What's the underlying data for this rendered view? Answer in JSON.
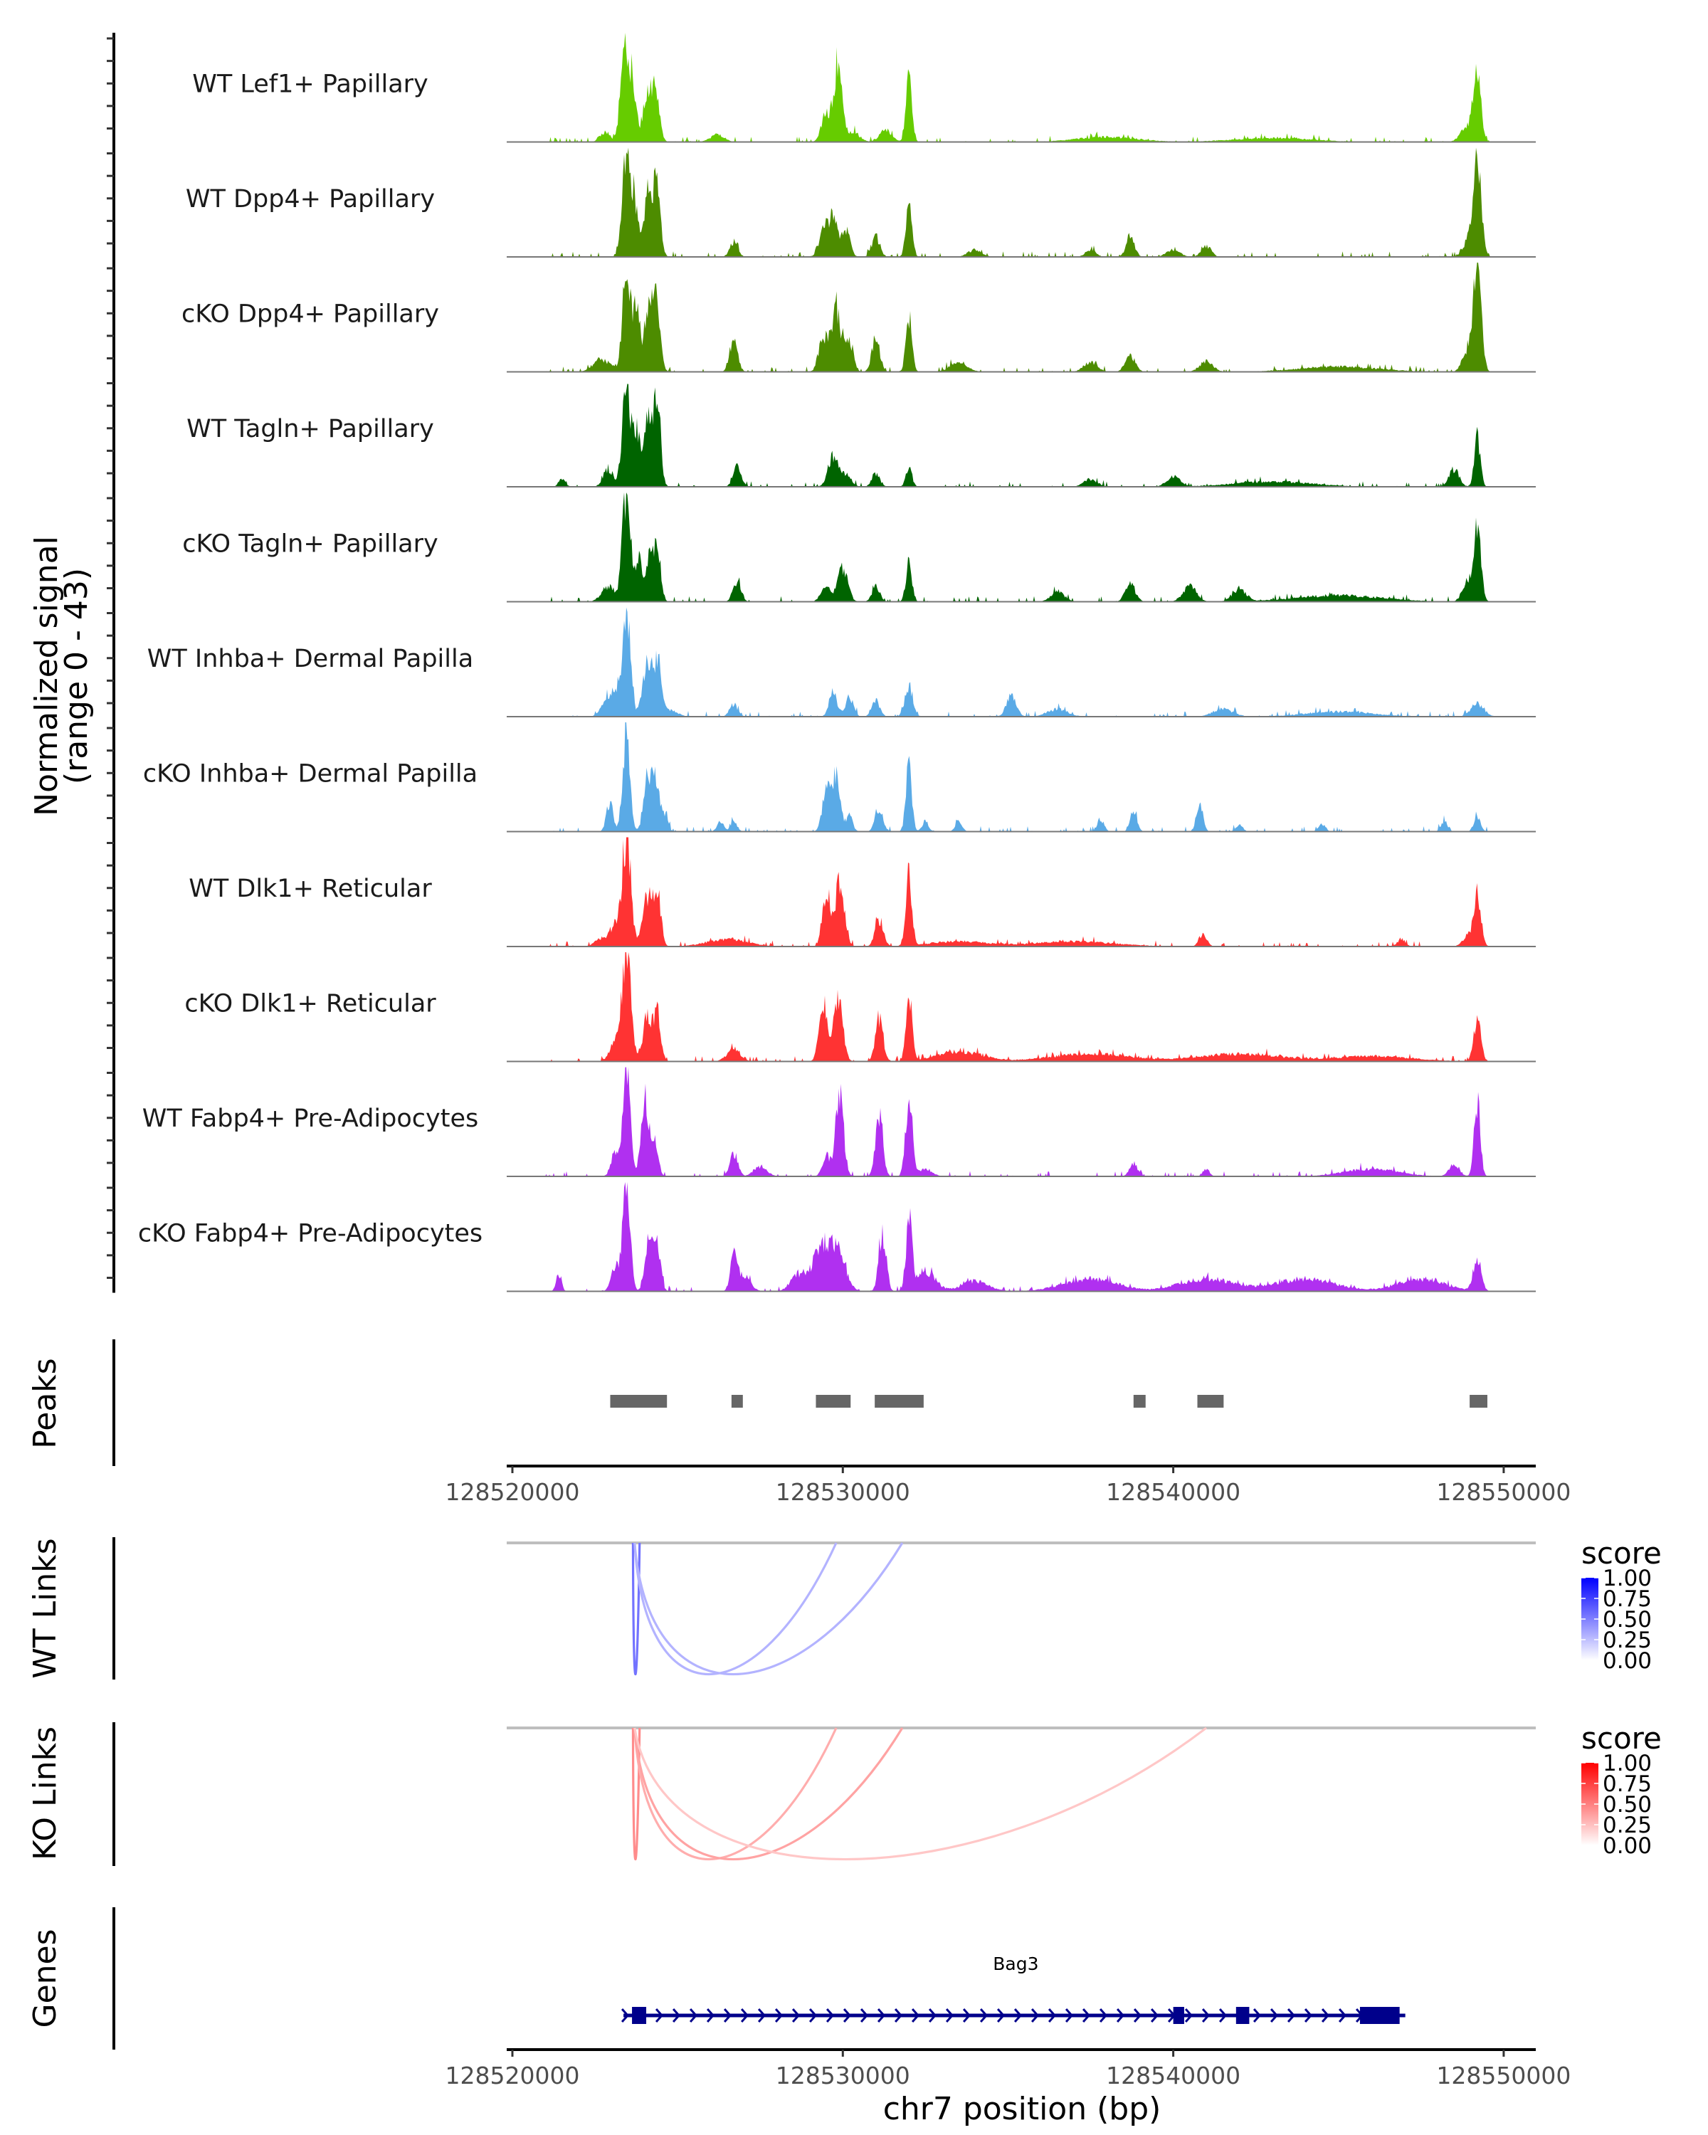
{
  "chart_data": {
    "type": "area",
    "title": "",
    "region": "chr7:128519828-128550971",
    "xlabel": "chr7 position (bp)",
    "ylabel": "Normalized signal\n(range 0 - 43)",
    "ylabel_lines": [
      "Normalized signal",
      "(range 0 - 43)"
    ],
    "ylim": [
      0,
      43
    ],
    "xlim": [
      128519828,
      128550971
    ],
    "x_ticks": [
      128520000,
      128530000,
      128540000,
      128550000
    ],
    "x_tick_labels": [
      "128520000",
      "128530000",
      "128540000",
      "128550000"
    ],
    "grid": false,
    "coverage_tracks": [
      {
        "name": "WT Lef1+ Papillary",
        "color": "#66cc00",
        "peaks": [
          [
            128523400,
            43,
            120
          ],
          [
            128523650,
            22,
            90
          ],
          [
            128524100,
            20,
            140
          ],
          [
            128524350,
            17,
            110
          ],
          [
            128522800,
            4,
            150
          ],
          [
            128526200,
            3,
            200
          ],
          [
            128529500,
            11,
            140
          ],
          [
            128529850,
            30,
            120
          ],
          [
            128530300,
            4,
            200
          ],
          [
            128531300,
            5,
            180
          ],
          [
            128532000,
            25,
            90
          ],
          [
            128549200,
            27,
            110
          ],
          [
            128548900,
            6,
            200
          ],
          [
            128538000,
            2,
            900
          ],
          [
            128543000,
            1.5,
            1200
          ]
        ]
      },
      {
        "name": "WT Dpp4+ Papillary",
        "color": "#4d8c00",
        "peaks": [
          [
            128523450,
            43,
            120
          ],
          [
            128523700,
            20,
            100
          ],
          [
            128524150,
            26,
            150
          ],
          [
            128524400,
            22,
            100
          ],
          [
            128526700,
            6,
            120
          ],
          [
            128529400,
            9,
            130
          ],
          [
            128529700,
            15,
            150
          ],
          [
            128530100,
            11,
            120
          ],
          [
            128531000,
            8,
            120
          ],
          [
            128532000,
            22,
            90
          ],
          [
            128534000,
            3,
            200
          ],
          [
            128537500,
            3,
            150
          ],
          [
            128538700,
            9,
            120
          ],
          [
            128540000,
            3,
            200
          ],
          [
            128541000,
            4,
            150
          ],
          [
            128549200,
            40,
            120
          ],
          [
            128548900,
            6,
            150
          ]
        ]
      },
      {
        "name": "cKO Dpp4+ Papillary",
        "color": "#4d8c00",
        "peaks": [
          [
            128523450,
            40,
            120
          ],
          [
            128523750,
            22,
            100
          ],
          [
            128524150,
            28,
            150
          ],
          [
            128524400,
            20,
            100
          ],
          [
            128522700,
            5,
            250
          ],
          [
            128526700,
            12,
            120
          ],
          [
            128529400,
            14,
            130
          ],
          [
            128529800,
            24,
            150
          ],
          [
            128530200,
            12,
            120
          ],
          [
            128531000,
            13,
            120
          ],
          [
            128532000,
            22,
            90
          ],
          [
            128533500,
            4,
            250
          ],
          [
            128537500,
            4,
            200
          ],
          [
            128538700,
            6,
            150
          ],
          [
            128541000,
            4,
            200
          ],
          [
            128549200,
            41,
            120
          ],
          [
            128548900,
            8,
            150
          ],
          [
            128545000,
            2,
            1200
          ]
        ]
      },
      {
        "name": "WT Tagln+ Papillary",
        "color": "#006400",
        "peaks": [
          [
            128523450,
            43,
            120
          ],
          [
            128523750,
            20,
            100
          ],
          [
            128524150,
            30,
            150
          ],
          [
            128524400,
            25,
            100
          ],
          [
            128521500,
            3,
            100
          ],
          [
            128522900,
            7,
            150
          ],
          [
            128526800,
            8,
            120
          ],
          [
            128529700,
            12,
            150
          ],
          [
            128530100,
            5,
            150
          ],
          [
            128531000,
            5,
            120
          ],
          [
            128532000,
            8,
            90
          ],
          [
            128537500,
            3,
            200
          ],
          [
            128540000,
            4,
            200
          ],
          [
            128548500,
            7,
            150
          ],
          [
            128549200,
            20,
            90
          ],
          [
            128543000,
            2,
            1200
          ]
        ]
      },
      {
        "name": "cKO Tagln+ Papillary",
        "color": "#006400",
        "peaks": [
          [
            128523450,
            43,
            120
          ],
          [
            128523800,
            16,
            100
          ],
          [
            128524150,
            17,
            150
          ],
          [
            128524400,
            18,
            100
          ],
          [
            128522900,
            6,
            200
          ],
          [
            128526800,
            8,
            120
          ],
          [
            128529500,
            6,
            150
          ],
          [
            128530000,
            13,
            150
          ],
          [
            128531000,
            6,
            120
          ],
          [
            128532000,
            16,
            90
          ],
          [
            128536500,
            4,
            200
          ],
          [
            128538700,
            7,
            150
          ],
          [
            128540500,
            6,
            200
          ],
          [
            128542000,
            5,
            200
          ],
          [
            128549200,
            28,
            110
          ],
          [
            128548900,
            8,
            150
          ],
          [
            128545000,
            2.5,
            1300
          ]
        ]
      },
      {
        "name": "WT Inhba+ Dermal Papilla",
        "color": "#5aaae6",
        "peaks": [
          [
            128523450,
            43,
            120
          ],
          [
            128523100,
            10,
            150
          ],
          [
            128522800,
            6,
            150
          ],
          [
            128524100,
            21,
            150
          ],
          [
            128524400,
            18,
            100
          ],
          [
            128524700,
            3,
            250
          ],
          [
            128526700,
            5,
            120
          ],
          [
            128529700,
            9,
            120
          ],
          [
            128530200,
            8,
            120
          ],
          [
            128531000,
            6,
            120
          ],
          [
            128532000,
            12,
            120
          ],
          [
            128535100,
            8,
            150
          ],
          [
            128536500,
            3,
            300
          ],
          [
            128541500,
            3,
            300
          ],
          [
            128545000,
            2,
            1000
          ],
          [
            128549200,
            5,
            200
          ]
        ]
      },
      {
        "name": "cKO Inhba+ Dermal Papilla",
        "color": "#5aaae6",
        "peaks": [
          [
            128523450,
            40,
            110
          ],
          [
            128522950,
            12,
            100
          ],
          [
            128524100,
            23,
            120
          ],
          [
            128524350,
            17,
            100
          ],
          [
            128524600,
            7,
            100
          ],
          [
            128526300,
            4,
            100
          ],
          [
            128526700,
            4,
            100
          ],
          [
            128529500,
            17,
            120
          ],
          [
            128529800,
            21,
            120
          ],
          [
            128530200,
            6,
            100
          ],
          [
            128531100,
            9,
            120
          ],
          [
            128532000,
            26,
            90
          ],
          [
            128532500,
            4,
            100
          ],
          [
            128533500,
            4,
            100
          ],
          [
            128537800,
            5,
            100
          ],
          [
            128538800,
            8,
            100
          ],
          [
            128540800,
            11,
            100
          ],
          [
            128542000,
            3,
            100
          ],
          [
            128544500,
            3,
            100
          ],
          [
            128548200,
            4,
            100
          ],
          [
            128549200,
            6,
            100
          ]
        ]
      },
      {
        "name": "WT Dlk1+ Reticular",
        "color": "#ff3333",
        "peaks": [
          [
            128523450,
            43,
            130
          ],
          [
            128523100,
            8,
            150
          ],
          [
            128524100,
            20,
            150
          ],
          [
            128524400,
            20,
            100
          ],
          [
            128522700,
            3,
            200
          ],
          [
            128526500,
            3,
            600
          ],
          [
            128529500,
            21,
            120
          ],
          [
            128529900,
            25,
            140
          ],
          [
            128531100,
            11,
            120
          ],
          [
            128532000,
            28,
            90
          ],
          [
            128533500,
            2,
            900
          ],
          [
            128537000,
            2,
            1200
          ],
          [
            128540900,
            5,
            120
          ],
          [
            128546900,
            3,
            120
          ],
          [
            128549200,
            20,
            110
          ],
          [
            128548900,
            4,
            150
          ]
        ]
      },
      {
        "name": "cKO Dlk1+ Reticular",
        "color": "#ff3333",
        "peaks": [
          [
            128523450,
            43,
            130
          ],
          [
            128523100,
            8,
            150
          ],
          [
            128524100,
            18,
            150
          ],
          [
            128524400,
            17,
            100
          ],
          [
            128526700,
            5,
            200
          ],
          [
            128529400,
            22,
            120
          ],
          [
            128529850,
            26,
            140
          ],
          [
            128531100,
            17,
            120
          ],
          [
            128532000,
            26,
            90
          ],
          [
            128533500,
            4,
            700
          ],
          [
            128537500,
            3,
            1200
          ],
          [
            128542000,
            3,
            1200
          ],
          [
            128546000,
            2,
            1200
          ],
          [
            128549200,
            16,
            110
          ]
        ]
      },
      {
        "name": "WT Fabp4+ Pre-Adipocytes",
        "color": "#b030f0",
        "peaks": [
          [
            128523450,
            43,
            110
          ],
          [
            128523100,
            9,
            120
          ],
          [
            128524000,
            33,
            110
          ],
          [
            128524300,
            17,
            100
          ],
          [
            128526700,
            9,
            120
          ],
          [
            128527500,
            4,
            200
          ],
          [
            128529500,
            8,
            120
          ],
          [
            128529900,
            34,
            120
          ],
          [
            128531100,
            26,
            110
          ],
          [
            128532000,
            32,
            100
          ],
          [
            128532500,
            3,
            200
          ],
          [
            128538800,
            5,
            120
          ],
          [
            128541000,
            3,
            100
          ],
          [
            128546000,
            3,
            800
          ],
          [
            128548500,
            5,
            150
          ],
          [
            128549200,
            30,
            90
          ]
        ]
      },
      {
        "name": "cKO Fabp4+ Pre-Adipocytes",
        "color": "#b030f0",
        "peaks": [
          [
            128523450,
            43,
            110
          ],
          [
            128523100,
            10,
            120
          ],
          [
            128524150,
            22,
            120
          ],
          [
            128524400,
            15,
            100
          ],
          [
            128526700,
            15,
            100
          ],
          [
            128527000,
            6,
            200
          ],
          [
            128528700,
            7,
            250
          ],
          [
            128529300,
            16,
            200
          ],
          [
            128529700,
            15,
            200
          ],
          [
            128530000,
            7,
            200
          ],
          [
            128531200,
            23,
            110
          ],
          [
            128532000,
            27,
            90
          ],
          [
            128532500,
            8,
            300
          ],
          [
            128534000,
            4,
            400
          ],
          [
            128537500,
            5,
            800
          ],
          [
            128541000,
            5,
            800
          ],
          [
            128544000,
            5,
            900
          ],
          [
            128547500,
            5,
            700
          ],
          [
            128549200,
            13,
            120
          ],
          [
            128521400,
            7,
            80
          ]
        ]
      }
    ],
    "peaks_track": {
      "label": "Peaks",
      "color": "#666666",
      "regions": [
        [
          128522961,
          128524678
        ],
        [
          128526631,
          128526974
        ],
        [
          128529185,
          128530236
        ],
        [
          128530966,
          128532446
        ],
        [
          128538798,
          128539163
        ],
        [
          128540730,
          128541524
        ],
        [
          128548970,
          128549506
        ]
      ]
    },
    "link_tracks": [
      {
        "label": "WT Links",
        "links": [
          {
            "start": 128523650,
            "end": 128523850,
            "score": 0.55
          },
          {
            "start": 128523700,
            "end": 128529800,
            "score": 0.3
          },
          {
            "start": 128523700,
            "end": 128531800,
            "score": 0.3
          }
        ],
        "legend": {
          "title": "score",
          "low_color": "#ffffff",
          "high_color": "#0000ff",
          "ticks": [
            "1.00",
            "0.75",
            "0.50",
            "0.25",
            "0.00"
          ]
        }
      },
      {
        "label": "KO Links",
        "links": [
          {
            "start": 128523650,
            "end": 128523850,
            "score": 0.45
          },
          {
            "start": 128523700,
            "end": 128529800,
            "score": 0.32
          },
          {
            "start": 128523700,
            "end": 128531800,
            "score": 0.36
          },
          {
            "start": 128523700,
            "end": 128541000,
            "score": 0.22
          }
        ],
        "legend": {
          "title": "score",
          "low_color": "#ffffff",
          "high_color": "#ff0000",
          "ticks": [
            "1.00",
            "0.75",
            "0.50",
            "0.25",
            "0.00"
          ]
        }
      }
    ],
    "gene_track": {
      "label": "Genes",
      "color": "#00008b",
      "genes": [
        {
          "name": "Bag3",
          "strand": "+",
          "start": 128523620,
          "end": 128546850,
          "exons": [
            [
              128523620,
              128524050
            ],
            [
              128540000,
              128540330
            ],
            [
              128541900,
              128542300
            ],
            [
              128545650,
              128546850
            ]
          ]
        }
      ]
    }
  }
}
